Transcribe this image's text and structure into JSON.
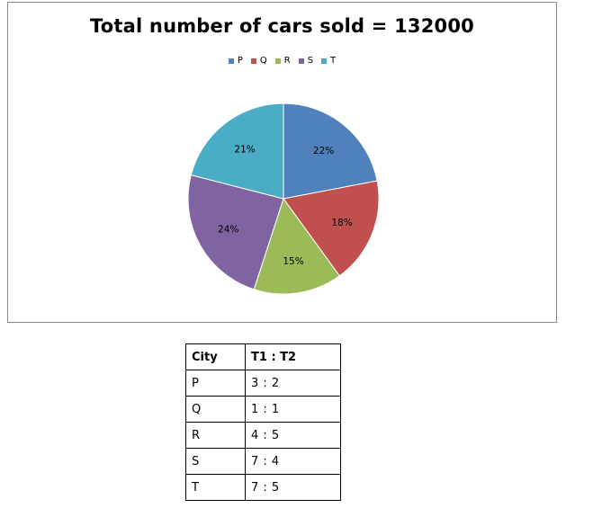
{
  "chart_data": {
    "type": "pie",
    "title": "Total number of cars sold = 132000",
    "legend_position": "top",
    "categories": [
      "P",
      "Q",
      "R",
      "S",
      "T"
    ],
    "values": [
      22,
      18,
      15,
      24,
      21
    ],
    "value_labels": [
      "22%",
      "18%",
      "15%",
      "24%",
      "21%"
    ],
    "colors": [
      "#4f81bd",
      "#c0504d",
      "#9bbb59",
      "#8064a2",
      "#4bacc6"
    ]
  },
  "table": {
    "headers": [
      "City",
      "T1 : T2"
    ],
    "rows": [
      [
        "P",
        "3 : 2"
      ],
      [
        "Q",
        "1 : 1"
      ],
      [
        "R",
        "4 : 5"
      ],
      [
        "S",
        "7 : 4"
      ],
      [
        "T",
        "7 : 5"
      ]
    ]
  }
}
